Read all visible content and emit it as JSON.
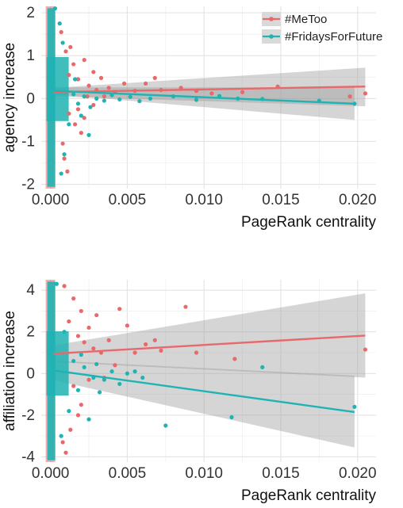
{
  "chart_data": [
    {
      "type": "scatter",
      "xlabel": "PageRank centrality",
      "ylabel": "agency increase",
      "xlim": [
        -0.0006,
        0.0212
      ],
      "ylim": [
        -2.1,
        2.15
      ],
      "xticks": [
        0.0,
        0.005,
        0.01,
        0.015,
        0.02
      ],
      "xtick_labels": [
        "0.000",
        "0.005",
        "0.010",
        "0.015",
        "0.020"
      ],
      "yticks": [
        -2,
        -1,
        0,
        1,
        2
      ],
      "ytick_labels": [
        "-2",
        "-1",
        "0",
        "1",
        "2"
      ],
      "grid": true,
      "legend_position": "top-right",
      "series": [
        {
          "name": "#MeToo",
          "color": "#e8696b",
          "trend": {
            "x": [
              0.0002,
              0.0205
            ],
            "y": [
              0.15,
              0.28
            ]
          },
          "band": {
            "x": [
              0.0002,
              0.0205
            ],
            "upper": [
              0.25,
              0.72
            ],
            "lower": [
              0.05,
              -0.18
            ]
          },
          "points": [
            [
              0.0012,
              0.55
            ],
            [
              0.0015,
              0.8
            ],
            [
              0.0018,
              0.45
            ],
            [
              0.0022,
              0.9
            ],
            [
              0.0025,
              0.3
            ],
            [
              0.0028,
              0.62
            ],
            [
              0.003,
              0.2
            ],
            [
              0.0033,
              0.48
            ],
            [
              0.0038,
              0.25
            ],
            [
              0.0042,
              0.15
            ],
            [
              0.0048,
              0.35
            ],
            [
              0.0055,
              0.18
            ],
            [
              0.0062,
              0.35
            ],
            [
              0.0068,
              0.48
            ],
            [
              0.0072,
              0.2
            ],
            [
              0.0085,
              0.25
            ],
            [
              0.0095,
              0.18
            ],
            [
              0.0105,
              0.12
            ],
            [
              0.0125,
              0.15
            ],
            [
              0.0148,
              0.28
            ],
            [
              0.0195,
              0.05
            ],
            [
              0.0205,
              0.12
            ],
            [
              0.0012,
              -0.35
            ],
            [
              0.0016,
              -0.6
            ],
            [
              0.0018,
              -0.25
            ],
            [
              0.0022,
              -0.45
            ],
            [
              0.0028,
              -0.15
            ],
            [
              0.0008,
              -1.05
            ],
            [
              0.0009,
              -1.4
            ],
            [
              0.0011,
              -1.7
            ],
            [
              0.001,
              1.1
            ],
            [
              0.0013,
              1.2
            ],
            [
              0.0007,
              1.55
            ],
            [
              0.002,
              -0.8
            ],
            [
              0.0024,
              0.05
            ],
            [
              0.0035,
              0.05
            ]
          ]
        },
        {
          "name": "#FridaysForFuture",
          "color": "#1fb3b3",
          "trend": {
            "x": [
              0.0002,
              0.0198
            ],
            "y": [
              0.18,
              -0.12
            ]
          },
          "band": {
            "x": [
              0.0002,
              0.0198
            ],
            "upper": [
              0.26,
              0.26
            ],
            "lower": [
              0.1,
              -0.5
            ]
          },
          "points": [
            [
              0.0015,
              0.1
            ],
            [
              0.0018,
              -0.12
            ],
            [
              0.0022,
              0.05
            ],
            [
              0.0026,
              -0.2
            ],
            [
              0.003,
              0.0
            ],
            [
              0.0035,
              -0.05
            ],
            [
              0.004,
              0.08
            ],
            [
              0.0045,
              -0.02
            ],
            [
              0.0052,
              0.04
            ],
            [
              0.0058,
              -0.06
            ],
            [
              0.0065,
              0.0
            ],
            [
              0.008,
              0.05
            ],
            [
              0.0095,
              -0.03
            ],
            [
              0.011,
              0.06
            ],
            [
              0.0122,
              0.0
            ],
            [
              0.0138,
              -0.01
            ],
            [
              0.0175,
              -0.05
            ],
            [
              0.0198,
              -0.12
            ],
            [
              0.0025,
              -0.85
            ],
            [
              0.0012,
              -0.6
            ],
            [
              0.0008,
              1.3
            ],
            [
              0.0006,
              1.75
            ],
            [
              0.0003,
              2.1
            ],
            [
              0.0009,
              -1.3
            ],
            [
              0.0007,
              -1.75
            ],
            [
              0.0016,
              0.45
            ],
            [
              0.002,
              -0.4
            ]
          ]
        }
      ]
    },
    {
      "type": "scatter",
      "xlabel": "PageRank centrality",
      "ylabel": "affiliation increase",
      "xlim": [
        -0.0006,
        0.0212
      ],
      "ylim": [
        -4.25,
        4.5
      ],
      "xticks": [
        0.0,
        0.005,
        0.01,
        0.015,
        0.02
      ],
      "xtick_labels": [
        "0.000",
        "0.005",
        "0.010",
        "0.015",
        "0.020"
      ],
      "yticks": [
        -4,
        -2,
        0,
        2,
        4
      ],
      "ytick_labels": [
        "-4",
        "-2",
        "0",
        "2",
        "4"
      ],
      "grid": true,
      "series": [
        {
          "name": "#MeToo",
          "color": "#e8696b",
          "trend": {
            "x": [
              0.0002,
              0.0205
            ],
            "y": [
              0.95,
              1.82
            ]
          },
          "band": {
            "x": [
              0.0002,
              0.0205
            ],
            "upper": [
              1.35,
              3.85
            ],
            "lower": [
              0.55,
              -0.2
            ]
          },
          "points": [
            [
              0.0012,
              2.5
            ],
            [
              0.0015,
              3.6
            ],
            [
              0.0018,
              1.8
            ],
            [
              0.002,
              3.0
            ],
            [
              0.0022,
              1.5
            ],
            [
              0.0025,
              2.2
            ],
            [
              0.0028,
              1.2
            ],
            [
              0.003,
              2.8
            ],
            [
              0.0033,
              1.0
            ],
            [
              0.0038,
              1.6
            ],
            [
              0.0045,
              3.1
            ],
            [
              0.005,
              2.3
            ],
            [
              0.0055,
              1.0
            ],
            [
              0.0062,
              1.4
            ],
            [
              0.0068,
              1.6
            ],
            [
              0.0072,
              1.1
            ],
            [
              0.0088,
              3.2
            ],
            [
              0.0095,
              1.0
            ],
            [
              0.012,
              0.7
            ],
            [
              0.0205,
              1.15
            ],
            [
              0.0015,
              -0.6
            ],
            [
              0.002,
              -1.5
            ],
            [
              0.0025,
              -0.3
            ],
            [
              0.0008,
              -3.3
            ],
            [
              0.001,
              -3.8
            ],
            [
              0.0013,
              -2.7
            ],
            [
              0.0018,
              -2.0
            ],
            [
              0.0035,
              -0.2
            ],
            [
              0.0042,
              0.4
            ],
            [
              0.0009,
              4.2
            ]
          ]
        },
        {
          "name": "#FridaysForFuture",
          "color": "#1fb3b3",
          "trend": {
            "x": [
              0.0002,
              0.0198
            ],
            "y": [
              0.15,
              -1.85
            ]
          },
          "band": {
            "x": [
              0.0002,
              0.0198
            ],
            "upper": [
              0.62,
              -0.1
            ],
            "lower": [
              -0.32,
              -3.55
            ]
          },
          "points": [
            [
              0.0015,
              0.6
            ],
            [
              0.0018,
              -0.8
            ],
            [
              0.0022,
              0.3
            ],
            [
              0.0025,
              -2.2
            ],
            [
              0.0028,
              -0.2
            ],
            [
              0.003,
              0.45
            ],
            [
              0.0035,
              -0.3
            ],
            [
              0.004,
              0.1
            ],
            [
              0.0045,
              -0.5
            ],
            [
              0.005,
              0.0
            ],
            [
              0.0055,
              0.1
            ],
            [
              0.006,
              -0.2
            ],
            [
              0.0075,
              -2.5
            ],
            [
              0.0118,
              -2.1
            ],
            [
              0.0138,
              0.3
            ],
            [
              0.0198,
              -1.6
            ],
            [
              0.0012,
              -1.8
            ],
            [
              0.0009,
              2.0
            ],
            [
              0.0007,
              -3.0
            ],
            [
              0.0004,
              4.3
            ],
            [
              0.002,
              0.9
            ],
            [
              0.0032,
              -0.9
            ]
          ]
        }
      ]
    }
  ]
}
